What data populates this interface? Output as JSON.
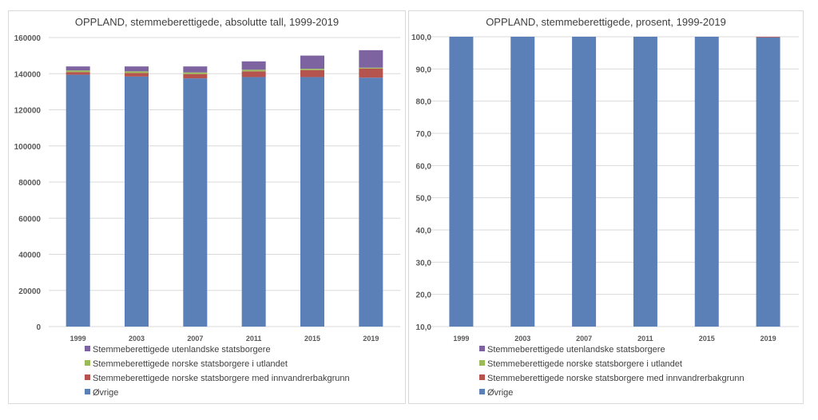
{
  "chart_data": [
    {
      "type": "bar",
      "stacked": true,
      "title": "OPPLAND, stemmeberettigede, absolutte tall, 1999-2019",
      "xlabel": "",
      "ylabel": "",
      "categories": [
        "1999",
        "2003",
        "2007",
        "2011",
        "2015",
        "2019"
      ],
      "ylim": [
        0,
        160000
      ],
      "yticks": [
        0,
        20000,
        40000,
        60000,
        80000,
        100000,
        120000,
        140000,
        160000
      ],
      "ytick_labels": [
        "0",
        "20000",
        "40000",
        "60000",
        "80000",
        "100000",
        "120000",
        "140000",
        "160000"
      ],
      "grid": true,
      "legend_position": "bottom",
      "series": [
        {
          "name": "Øvrige",
          "color": "#5B80B8",
          "values": [
            139400,
            138400,
            137400,
            138100,
            138100,
            137800
          ]
        },
        {
          "name": "Stemmeberettigede norske statsborgere med innvandrerbakgrunn",
          "color": "#B5534F",
          "values": [
            1500,
            2000,
            2400,
            3200,
            3900,
            5000
          ]
        },
        {
          "name": "Stemmeberettigede norske statsborgere i utlandet",
          "color": "#9BBB59",
          "values": [
            900,
            900,
            900,
            900,
            700,
            500
          ]
        },
        {
          "name": "Stemmeberettigede utenlandske statsborgere",
          "color": "#7D63A0",
          "values": [
            2200,
            2700,
            3300,
            4600,
            7300,
            9700
          ]
        }
      ]
    },
    {
      "type": "bar",
      "stacked": true,
      "title": "OPPLAND, stemmeberettigede, prosent, 1999-2019",
      "xlabel": "",
      "ylabel": "",
      "categories": [
        "1999",
        "2003",
        "2007",
        "2011",
        "2015",
        "2019"
      ],
      "ylim": [
        10,
        100
      ],
      "yticks": [
        10,
        20,
        30,
        40,
        50,
        60,
        70,
        80,
        90,
        100
      ],
      "ytick_labels": [
        "10,0",
        "20,0",
        "30,0",
        "40,0",
        "50,0",
        "60,0",
        "70,0",
        "80,0",
        "90,0",
        "100,0"
      ],
      "grid": true,
      "legend_position": "bottom",
      "series": [
        {
          "name": "Øvrige",
          "color": "#5B80B8",
          "values": [
            96.6,
            96.1,
            95.5,
            94.1,
            91.8,
            89.8
          ]
        },
        {
          "name": "Stemmeberettigede norske statsborgere med innvandrerbakgrunn",
          "color": "#B5534F",
          "values": [
            1.1,
            1.3,
            1.5,
            2.2,
            2.8,
            3.6
          ]
        },
        {
          "name": "Stemmeberettigede norske statsborgere i utlandet",
          "color": "#9BBB59",
          "values": [
            0.8,
            0.7,
            0.9,
            0.6,
            0.4,
            0.4
          ]
        },
        {
          "name": "Stemmeberettigede utenlandske statsborgere",
          "color": "#7D63A0",
          "values": [
            1.5,
            1.9,
            2.1,
            3.1,
            5.0,
            6.2
          ]
        }
      ]
    }
  ]
}
